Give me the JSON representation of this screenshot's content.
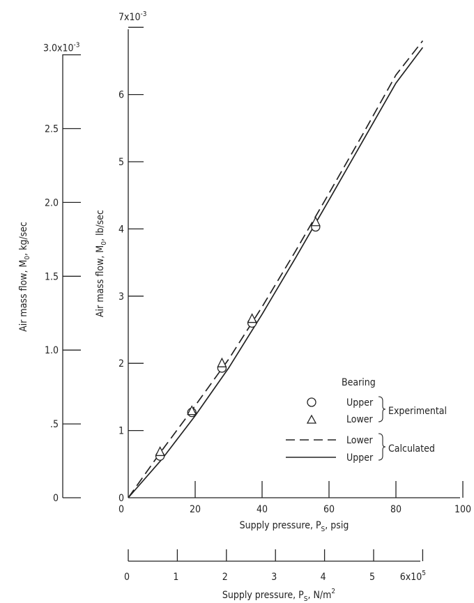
{
  "chart_data": {
    "type": "line",
    "x_axis": {
      "label_text": "Supply pressure,  P",
      "label_sub": "S",
      "label_unit": ",  psig",
      "range": [
        0,
        100
      ],
      "ticks": [
        0,
        20,
        40,
        60,
        80,
        100
      ],
      "tick_labels": [
        "0",
        "20",
        "40",
        "60",
        "80",
        "100"
      ]
    },
    "x_axis_secondary": {
      "label_text": "Supply pressure,  P",
      "label_sub": "S",
      "label_unit": ",  N/m",
      "label_sup": "2",
      "range": [
        0,
        6
      ],
      "ticks": [
        0,
        1,
        2,
        3,
        4,
        5,
        6
      ],
      "tick_labels": [
        "0",
        "1",
        "2",
        "3",
        "4",
        "5",
        "6x10"
      ],
      "exponent": "5"
    },
    "y_axis": {
      "label_text": "Air mass flow,  M",
      "label_sub": "0",
      "label_unit": ",  lb/sec",
      "range": [
        0,
        7
      ],
      "ticks": [
        0,
        1,
        2,
        3,
        4,
        5,
        6,
        7
      ],
      "tick_labels": [
        "0",
        "1",
        "2",
        "3",
        "4",
        "5",
        "6",
        "7x10"
      ],
      "exponent": "-3"
    },
    "y_axis_secondary": {
      "label_text": "Air mass flow,  M",
      "label_sub": "0",
      "label_unit": ",  kg/sec",
      "range": [
        0,
        3.0
      ],
      "ticks": [
        0,
        0.5,
        1.0,
        1.5,
        2.0,
        2.5,
        3.0
      ],
      "tick_labels": [
        "0",
        ".5",
        "1.0",
        "1.5",
        "2.0",
        "2.5",
        "3.0x10"
      ],
      "exponent": "-3"
    },
    "series": [
      {
        "name": "Upper",
        "group": "Experimental",
        "marker": "circle",
        "points": [
          [
            9.5,
            0.62
          ],
          [
            19,
            1.27
          ],
          [
            28,
            1.93
          ],
          [
            37,
            2.6
          ],
          [
            56,
            4.03
          ]
        ]
      },
      {
        "name": "Lower",
        "group": "Experimental",
        "marker": "triangle",
        "points": [
          [
            9.5,
            0.68
          ],
          [
            19,
            1.29
          ],
          [
            28,
            2.0
          ],
          [
            37,
            2.66
          ],
          [
            56,
            4.1
          ]
        ]
      },
      {
        "name": "Lower",
        "group": "Calculated",
        "style": "dashed",
        "points": [
          [
            0,
            0
          ],
          [
            10,
            0.7
          ],
          [
            20,
            1.37
          ],
          [
            30,
            2.06
          ],
          [
            40,
            2.84
          ],
          [
            50,
            3.67
          ],
          [
            60,
            4.53
          ],
          [
            70,
            5.4
          ],
          [
            80,
            6.29
          ],
          [
            88,
            6.8
          ]
        ]
      },
      {
        "name": "Upper",
        "group": "Calculated",
        "style": "solid",
        "points": [
          [
            0,
            0
          ],
          [
            10,
            0.57
          ],
          [
            20,
            1.22
          ],
          [
            30,
            1.93
          ],
          [
            40,
            2.73
          ],
          [
            50,
            3.57
          ],
          [
            60,
            4.43
          ],
          [
            70,
            5.3
          ],
          [
            80,
            6.17
          ],
          [
            88,
            6.7
          ]
        ]
      }
    ],
    "legend": {
      "title": "Bearing",
      "groups": [
        {
          "label": "Experimental",
          "entries": [
            "Upper",
            "Lower"
          ]
        },
        {
          "label": "Calculated",
          "entries": [
            "Lower",
            "Upper"
          ]
        }
      ],
      "placement": "lower-right"
    },
    "grid": false
  }
}
